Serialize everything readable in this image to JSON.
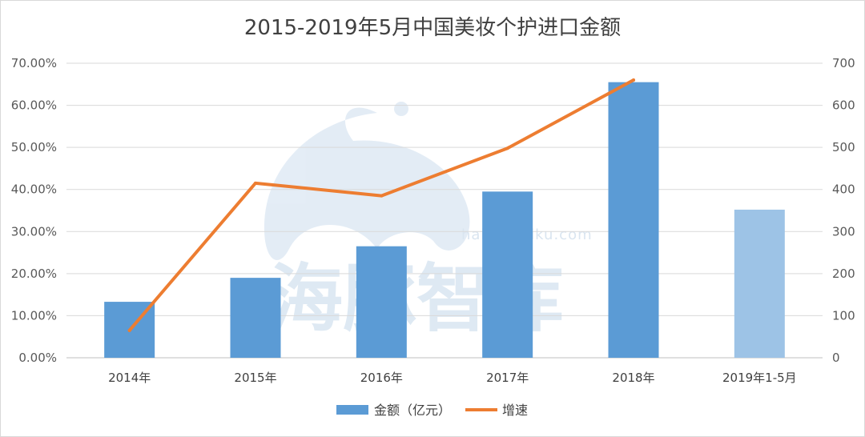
{
  "chart_data": {
    "type": "bar",
    "title": "2015-2019年5月中国美妆个护进口金额",
    "categories": [
      "2014年",
      "2015年",
      "2016年",
      "2017年",
      "2018年",
      "2019年1-5月"
    ],
    "series": [
      {
        "name": "金额（亿元）",
        "kind": "bar",
        "axis": "right",
        "values": [
          133,
          190,
          265,
          395,
          655,
          352
        ],
        "colors": [
          "#5b9bd5",
          "#5b9bd5",
          "#5b9bd5",
          "#5b9bd5",
          "#5b9bd5",
          "#9dc3e6"
        ]
      },
      {
        "name": "增速",
        "kind": "line",
        "axis": "left",
        "values": [
          6.5,
          41.5,
          38.5,
          49.8,
          66.0,
          null
        ],
        "color": "#ed7d31"
      }
    ],
    "y_left": {
      "min": 0,
      "max": 70,
      "step": 10,
      "format": "percent"
    },
    "y_right": {
      "min": 0,
      "max": 700,
      "step": 100
    },
    "y_left_ticks": [
      "0.00%",
      "10.00%",
      "20.00%",
      "30.00%",
      "40.00%",
      "50.00%",
      "60.00%",
      "70.00%"
    ],
    "y_right_ticks": [
      "0",
      "100",
      "200",
      "300",
      "400",
      "500",
      "600",
      "700"
    ],
    "grid": true,
    "legend": "bottom"
  },
  "watermark": {
    "text": "海豚智库",
    "url": "haitunzhiku.com"
  }
}
